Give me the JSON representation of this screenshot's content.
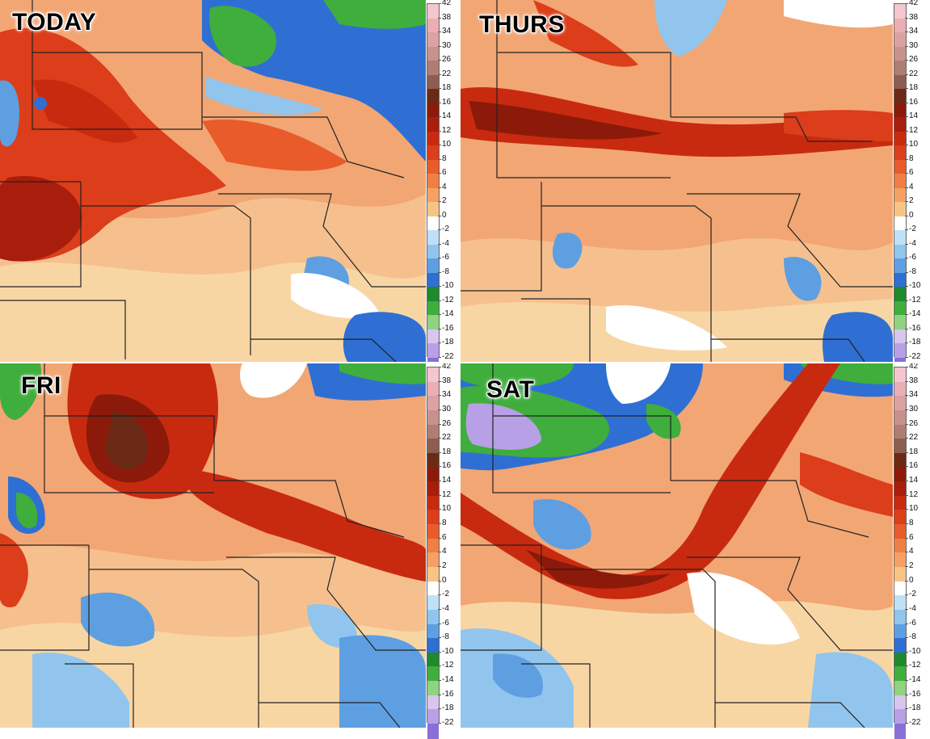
{
  "panels": [
    {
      "id": "today",
      "title": "TODAY"
    },
    {
      "id": "thurs",
      "title": "THURS"
    },
    {
      "id": "fri",
      "title": "FRI"
    },
    {
      "id": "sat",
      "title": "SAT"
    }
  ],
  "legend": {
    "labels": [
      "42",
      "38",
      "34",
      "30",
      "26",
      "22",
      "18",
      "16",
      "14",
      "12",
      "10",
      "8",
      "6",
      "4",
      "2",
      "0",
      "-2",
      "-4",
      "-6",
      "-8",
      "-10",
      "-12",
      "-14",
      "-16",
      "-18",
      "-22"
    ],
    "colors": [
      "#f4c6cf",
      "#eaaeb4",
      "#dca2a3",
      "#c8928c",
      "#ae7d73",
      "#8c5e51",
      "#6b2a16",
      "#8b1a0a",
      "#a81d0c",
      "#c82a10",
      "#dc3d1a",
      "#e95b2a",
      "#f07f45",
      "#f5a064",
      "#f7c486",
      "#ffffff",
      "#bfe0f6",
      "#91c5ee",
      "#5e9fe2",
      "#2f6fd3",
      "#1e8a2c",
      "#3fae3c",
      "#8fd27f",
      "#d8c6ee",
      "#b7a0e6",
      "#8a6fd8"
    ]
  }
}
